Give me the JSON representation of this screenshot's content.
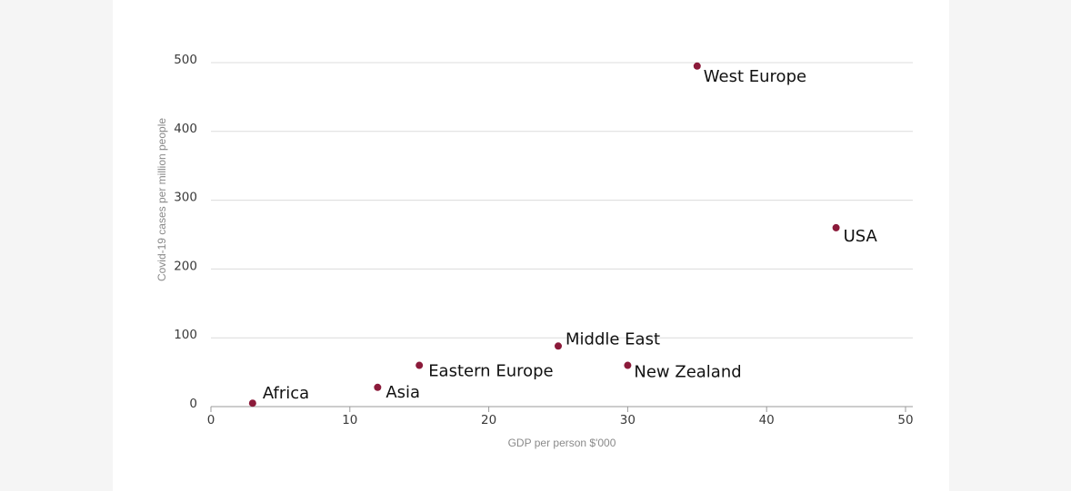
{
  "colors": {
    "point": "#8b1a3a",
    "grid": "#dcdcdc",
    "axis": "#9a9a9a",
    "card": "#ffffff",
    "page": "#f5f5f5"
  },
  "chart_data": {
    "type": "scatter",
    "title": "",
    "xlabel": "GDP per person $'000",
    "ylabel": "Covid-19 cases per million people",
    "xlim": [
      0,
      50
    ],
    "ylim": [
      0,
      500
    ],
    "x_ticks": [
      0,
      10,
      20,
      30,
      40,
      50
    ],
    "y_ticks": [
      0,
      100,
      200,
      300,
      400,
      500
    ],
    "grid": "horizontal",
    "points": [
      {
        "label": "Africa",
        "x": 3,
        "y": 5
      },
      {
        "label": "Asia",
        "x": 12,
        "y": 28
      },
      {
        "label": "Eastern Europe",
        "x": 15,
        "y": 60
      },
      {
        "label": "Middle East",
        "x": 25,
        "y": 88
      },
      {
        "label": "New Zealand",
        "x": 30,
        "y": 60
      },
      {
        "label": "West Europe",
        "x": 35,
        "y": 495
      },
      {
        "label": "USA",
        "x": 45,
        "y": 260
      }
    ]
  }
}
